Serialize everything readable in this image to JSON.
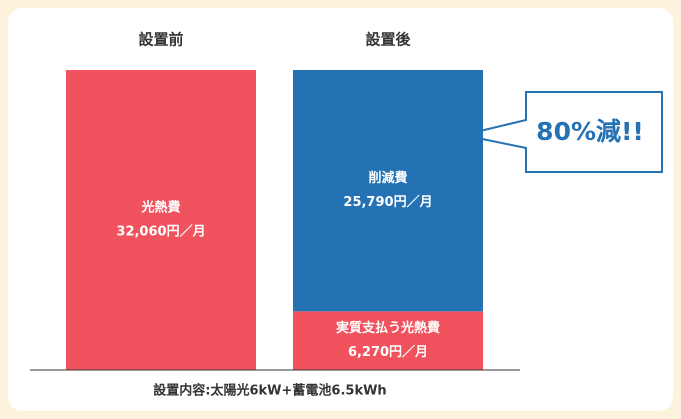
{
  "chart_data": {
    "type": "stacked_bar",
    "categories": [
      "設置前",
      "設置後"
    ],
    "series": [
      {
        "name": "光熱費",
        "color": "#f0525e",
        "values": [
          32060,
          null
        ],
        "value_labels": [
          "32,060円／月",
          null
        ]
      },
      {
        "name": "実質支払う光熱費",
        "color": "#f0525e",
        "values": [
          null,
          6270
        ],
        "value_labels": [
          null,
          "6,270円／月"
        ]
      },
      {
        "name": "削減費",
        "color": "#2471b3",
        "values": [
          null,
          25790
        ],
        "value_labels": [
          null,
          "25,790円／月"
        ]
      }
    ],
    "annotation": "80%減!!",
    "footnote": "設置内容:太陽光6kW+蓄電池6.5kWh"
  }
}
